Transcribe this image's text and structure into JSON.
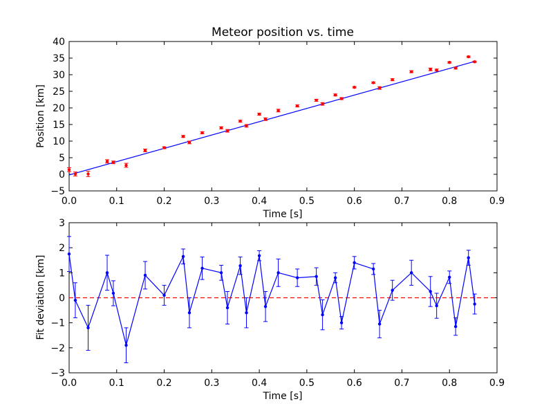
{
  "chart_data": [
    {
      "type": "scatter",
      "title": "Meteor position vs. time",
      "xlabel": "Time [s]",
      "ylabel": "Position [km]",
      "xlim": [
        0.0,
        0.9
      ],
      "ylim": [
        -5,
        40
      ],
      "xticks": [
        "0.0",
        "0.1",
        "0.2",
        "0.3",
        "0.4",
        "0.5",
        "0.6",
        "0.7",
        "0.8",
        "0.9"
      ],
      "yticks": [
        "−5",
        "0",
        "5",
        "10",
        "15",
        "20",
        "25",
        "30",
        "35",
        "40"
      ],
      "grid": false,
      "colors": {
        "points": "#ff0000",
        "fit": "#0000ff"
      },
      "series": [
        {
          "marker": "red-dot-with-errorbars",
          "x": [
            0.0,
            0.013,
            0.04,
            0.08,
            0.093,
            0.12,
            0.16,
            0.2,
            0.24,
            0.253,
            0.28,
            0.32,
            0.333,
            0.36,
            0.373,
            0.4,
            0.413,
            0.44,
            0.48,
            0.52,
            0.533,
            0.56,
            0.573,
            0.6,
            0.64,
            0.653,
            0.68,
            0.72,
            0.76,
            0.773,
            0.8,
            0.813,
            0.84,
            0.853
          ],
          "y": [
            1.4,
            0.1,
            0.1,
            3.9,
            3.6,
            2.7,
            7.2,
            8.0,
            11.4,
            9.6,
            12.5,
            14.0,
            13.1,
            16.0,
            14.6,
            18.1,
            16.6,
            19.2,
            20.6,
            22.3,
            21.2,
            23.9,
            22.8,
            26.2,
            27.6,
            26.0,
            28.5,
            30.9,
            31.6,
            31.4,
            33.7,
            32.0,
            35.4,
            33.9
          ],
          "yerr": [
            0.6,
            0.6,
            0.8,
            0.5,
            0.4,
            0.6,
            0.4,
            0.3,
            0.3,
            0.4,
            0.3,
            0.3,
            0.4,
            0.3,
            0.4,
            0.3,
            0.4,
            0.4,
            0.3,
            0.3,
            0.4,
            0.3,
            0.3,
            0.2,
            0.2,
            0.4,
            0.3,
            0.3,
            0.4,
            0.3,
            0.2,
            0.3,
            0.2,
            0.2
          ]
        },
        {
          "marker": "blue-line",
          "x": [
            0.0,
            0.853
          ],
          "y": [
            -0.2,
            34.0
          ]
        }
      ]
    },
    {
      "type": "line",
      "title": "",
      "xlabel": "Time [s]",
      "ylabel": "Fit deviation [km]",
      "xlim": [
        0.0,
        0.9
      ],
      "ylim": [
        -3,
        3
      ],
      "xticks": [
        "0.0",
        "0.1",
        "0.2",
        "0.3",
        "0.4",
        "0.5",
        "0.6",
        "0.7",
        "0.8",
        "0.9"
      ],
      "yticks": [
        "−3",
        "−2",
        "−1",
        "0",
        "1",
        "2",
        "3"
      ],
      "grid": false,
      "colors": {
        "deviation": "#0000ff",
        "zero_line": "#ff0000"
      },
      "reference_line_y": 0,
      "series": [
        {
          "marker": "blue-line-with-dots-and-errorbars",
          "x": [
            0.0,
            0.013,
            0.04,
            0.08,
            0.093,
            0.12,
            0.16,
            0.2,
            0.24,
            0.253,
            0.28,
            0.32,
            0.333,
            0.36,
            0.373,
            0.4,
            0.413,
            0.44,
            0.48,
            0.52,
            0.533,
            0.56,
            0.573,
            0.6,
            0.64,
            0.653,
            0.68,
            0.72,
            0.76,
            0.773,
            0.8,
            0.813,
            0.84,
            0.853
          ],
          "y": [
            1.75,
            -0.1,
            -1.2,
            1.0,
            0.18,
            -1.9,
            0.9,
            0.1,
            1.65,
            -0.6,
            1.18,
            1.0,
            -0.4,
            1.28,
            -0.6,
            1.68,
            -0.35,
            1.0,
            0.8,
            0.85,
            -0.68,
            0.8,
            -1.0,
            1.4,
            1.15,
            -1.05,
            0.3,
            1.0,
            0.25,
            -0.32,
            0.82,
            -1.15,
            1.6,
            -0.25
          ],
          "yerr": [
            0.7,
            0.7,
            0.9,
            0.7,
            0.5,
            0.7,
            0.55,
            0.4,
            0.3,
            0.6,
            0.45,
            0.3,
            0.65,
            0.35,
            0.6,
            0.2,
            0.6,
            0.55,
            0.35,
            0.35,
            0.6,
            0.2,
            0.25,
            0.25,
            0.22,
            0.55,
            0.4,
            0.5,
            0.6,
            0.5,
            0.25,
            0.35,
            0.3,
            0.4
          ]
        }
      ]
    }
  ]
}
